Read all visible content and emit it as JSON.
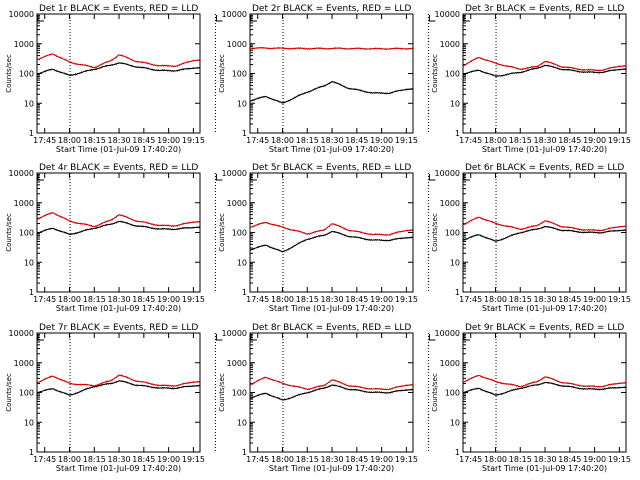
{
  "figure": {
    "ylabel": "Counts/sec",
    "xlabel": "Start Time (01-Jul-09 17:40:20)",
    "xticks": [
      "17:45",
      "18:00",
      "18:15",
      "18:30",
      "18:45",
      "19:00",
      "19:15"
    ],
    "yticks": [
      "1",
      "10",
      "100",
      "1000",
      "10000"
    ],
    "colors": {
      "events": "#000000",
      "lld": "#d40000",
      "axes": "#000000"
    }
  },
  "chart_data": [
    {
      "type": "line",
      "title": "Det 1r BLACK = Events, RED = LLD",
      "ylim": [
        1,
        10000
      ],
      "yscale": "log",
      "x": [
        "17:40",
        "17:50",
        "18:00",
        "18:15",
        "18:25",
        "18:30",
        "18:40",
        "18:55",
        "19:05",
        "19:15"
      ],
      "series": [
        {
          "name": "BLACK = Events",
          "values": [
            95,
            140,
            85,
            140,
            190,
            230,
            170,
            125,
            125,
            155
          ]
        },
        {
          "name": "RED = LLD",
          "values": [
            290,
            460,
            240,
            160,
            270,
            430,
            260,
            180,
            180,
            280
          ]
        }
      ]
    },
    {
      "type": "line",
      "title": "Det 2r BLACK = Events, RED = LLD",
      "ylim": [
        1,
        10000
      ],
      "yscale": "log",
      "x": [
        "17:40",
        "17:50",
        "18:00",
        "18:15",
        "18:25",
        "18:30",
        "18:40",
        "18:55",
        "19:05",
        "19:15"
      ],
      "series": [
        {
          "name": "BLACK = Events",
          "values": [
            12,
            17,
            10,
            24,
            38,
            54,
            32,
            22,
            22,
            30
          ]
        },
        {
          "name": "RED = LLD",
          "values": [
            700,
            720,
            700,
            690,
            690,
            700,
            690,
            680,
            680,
            690
          ]
        }
      ]
    },
    {
      "type": "line",
      "title": "Det 3r BLACK = Events, RED = LLD",
      "ylim": [
        1,
        10000
      ],
      "yscale": "log",
      "x": [
        "17:40",
        "17:50",
        "18:00",
        "18:15",
        "18:25",
        "18:30",
        "18:40",
        "18:55",
        "19:05",
        "19:15"
      ],
      "series": [
        {
          "name": "BLACK = Events",
          "values": [
            95,
            130,
            80,
            110,
            150,
            190,
            140,
            110,
            110,
            140
          ]
        },
        {
          "name": "RED = LLD",
          "values": [
            180,
            350,
            220,
            140,
            170,
            260,
            170,
            130,
            130,
            180
          ]
        }
      ]
    },
    {
      "type": "line",
      "title": "Det 4r BLACK = Events, RED = LLD",
      "ylim": [
        1,
        10000
      ],
      "yscale": "log",
      "x": [
        "17:40",
        "17:50",
        "18:00",
        "18:15",
        "18:25",
        "18:30",
        "18:40",
        "18:55",
        "19:05",
        "19:15"
      ],
      "series": [
        {
          "name": "BLACK = Events",
          "values": [
            95,
            140,
            85,
            140,
            190,
            240,
            170,
            130,
            130,
            150
          ]
        },
        {
          "name": "RED = LLD",
          "values": [
            280,
            470,
            240,
            160,
            260,
            400,
            250,
            170,
            170,
            230
          ]
        }
      ]
    },
    {
      "type": "line",
      "title": "Det 5r BLACK = Events, RED = LLD",
      "ylim": [
        1,
        10000
      ],
      "yscale": "log",
      "x": [
        "17:40",
        "17:50",
        "18:00",
        "18:15",
        "18:25",
        "18:30",
        "18:40",
        "18:55",
        "19:05",
        "19:15"
      ],
      "series": [
        {
          "name": "BLACK = Events",
          "values": [
            26,
            38,
            22,
            60,
            80,
            110,
            75,
            55,
            55,
            68
          ]
        },
        {
          "name": "RED = LLD",
          "values": [
            150,
            220,
            150,
            90,
            120,
            200,
            120,
            85,
            85,
            120
          ]
        }
      ]
    },
    {
      "type": "line",
      "title": "Det 6r BLACK = Events, RED = LLD",
      "ylim": [
        1,
        10000
      ],
      "yscale": "log",
      "x": [
        "17:40",
        "17:50",
        "18:00",
        "18:15",
        "18:25",
        "18:30",
        "18:40",
        "18:55",
        "19:05",
        "19:15"
      ],
      "series": [
        {
          "name": "BLACK = Events",
          "values": [
            55,
            85,
            50,
            100,
            130,
            160,
            120,
            100,
            100,
            120
          ]
        },
        {
          "name": "RED = LLD",
          "values": [
            180,
            330,
            200,
            130,
            170,
            250,
            160,
            120,
            120,
            160
          ]
        }
      ]
    },
    {
      "type": "line",
      "title": "Det 7r BLACK = Events, RED = LLD",
      "ylim": [
        1,
        10000
      ],
      "yscale": "log",
      "x": [
        "17:40",
        "17:50",
        "18:00",
        "18:15",
        "18:25",
        "18:30",
        "18:40",
        "18:55",
        "19:05",
        "19:15"
      ],
      "series": [
        {
          "name": "BLACK = Events",
          "values": [
            100,
            135,
            80,
            160,
            200,
            250,
            180,
            140,
            140,
            170
          ]
        },
        {
          "name": "RED = LLD",
          "values": [
            210,
            360,
            200,
            170,
            250,
            390,
            250,
            170,
            170,
            230
          ]
        }
      ]
    },
    {
      "type": "line",
      "title": "Det 8r BLACK = Events, RED = LLD",
      "ylim": [
        1,
        10000
      ],
      "yscale": "log",
      "x": [
        "17:40",
        "17:50",
        "18:00",
        "18:15",
        "18:25",
        "18:30",
        "18:40",
        "18:55",
        "19:05",
        "19:15"
      ],
      "series": [
        {
          "name": "BLACK = Events",
          "values": [
            65,
            95,
            55,
            100,
            140,
            180,
            130,
            100,
            100,
            125
          ]
        },
        {
          "name": "RED = LLD",
          "values": [
            180,
            330,
            200,
            130,
            170,
            270,
            170,
            130,
            130,
            180
          ]
        }
      ]
    },
    {
      "type": "line",
      "title": "Det 9r BLACK = Events, RED = LLD",
      "ylim": [
        1,
        10000
      ],
      "yscale": "log",
      "x": [
        "17:40",
        "17:50",
        "18:00",
        "18:15",
        "18:25",
        "18:30",
        "18:40",
        "18:55",
        "19:05",
        "19:15"
      ],
      "series": [
        {
          "name": "BLACK = Events",
          "values": [
            100,
            140,
            80,
            140,
            180,
            220,
            170,
            130,
            130,
            150
          ]
        },
        {
          "name": "RED = LLD",
          "values": [
            220,
            380,
            230,
            160,
            230,
            340,
            220,
            160,
            160,
            210
          ]
        }
      ]
    }
  ]
}
